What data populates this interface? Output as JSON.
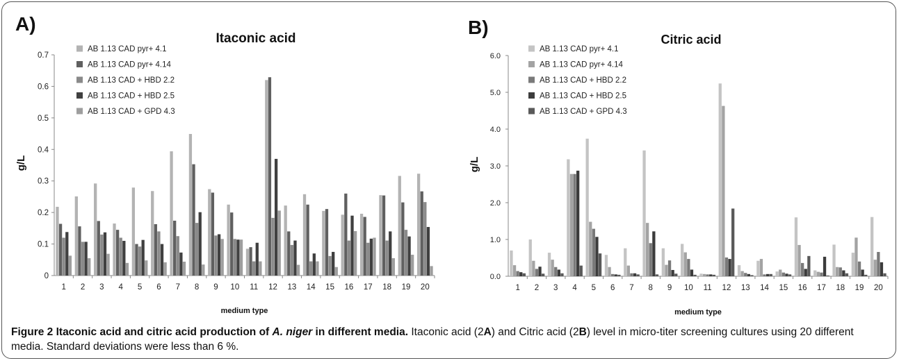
{
  "chart_data": [
    {
      "type": "bar",
      "panel_label": "A)",
      "title": "Itaconic acid",
      "xlabel": "medium type",
      "ylabel": "g/L",
      "ylim": [
        0,
        0.7
      ],
      "y_ticks": [
        "0",
        "0.1",
        "0.2",
        "0.3",
        "0.4",
        "0.5",
        "0.6",
        "0.7"
      ],
      "categories": [
        "1",
        "2",
        "3",
        "4",
        "5",
        "6",
        "7",
        "8",
        "9",
        "10",
        "11",
        "12",
        "13",
        "14",
        "15",
        "16",
        "17",
        "18",
        "19",
        "20"
      ],
      "legend_position": "top-left",
      "series": [
        {
          "name": "AB 1.13 CAD pyr+ 4.1",
          "color": "#b3b3b3",
          "values": [
            0.218,
            0.251,
            0.292,
            0.165,
            0.279,
            0.268,
            0.394,
            0.449,
            0.274,
            0.225,
            0.085,
            0.62,
            0.222,
            0.258,
            0.205,
            0.193,
            0.196,
            0.255,
            0.316,
            0.323
          ]
        },
        {
          "name": "AB 1.13 CAD pyr+ 4.14",
          "color": "#606060",
          "values": [
            0.164,
            0.156,
            0.173,
            0.145,
            0.1,
            0.163,
            0.174,
            0.353,
            0.263,
            0.2,
            0.09,
            0.629,
            0.14,
            0.225,
            0.211,
            0.26,
            0.186,
            0.254,
            0.232,
            0.267
          ]
        },
        {
          "name": "AB 1.13 CAD + HBD 2.2",
          "color": "#8a8a8a",
          "values": [
            0.12,
            0.107,
            0.13,
            0.12,
            0.092,
            0.14,
            0.125,
            0.167,
            0.127,
            0.116,
            0.045,
            0.183,
            0.097,
            0.045,
            0.062,
            0.111,
            0.104,
            0.111,
            0.145,
            0.233
          ]
        },
        {
          "name": "AB 1.13 CAD + HBD 2.5",
          "color": "#404040",
          "values": [
            0.138,
            0.107,
            0.137,
            0.11,
            0.113,
            0.1,
            0.073,
            0.201,
            0.131,
            0.114,
            0.104,
            0.37,
            0.111,
            0.07,
            0.075,
            0.19,
            0.117,
            0.14,
            0.124,
            0.154
          ]
        },
        {
          "name": "AB 1.13 CAD + GPD 4.3",
          "color": "#9e9e9e",
          "values": [
            0.063,
            0.055,
            0.069,
            0.04,
            0.048,
            0.042,
            0.044,
            0.035,
            0.116,
            0.114,
            0.045,
            0.206,
            0.034,
            0.045,
            0.027,
            0.141,
            0.12,
            0.055,
            0.066,
            0.03
          ]
        }
      ]
    },
    {
      "type": "bar",
      "panel_label": "B)",
      "title": "Citric acid",
      "xlabel": "medium type",
      "ylabel": "g/L",
      "ylim": [
        0,
        6.0
      ],
      "y_ticks": [
        "0.0",
        "1.0",
        "2.0",
        "3.0",
        "4.0",
        "5.0",
        "6.0"
      ],
      "categories": [
        "1",
        "2",
        "3",
        "4",
        "5",
        "6",
        "7",
        "8",
        "9",
        "10",
        "11",
        "12",
        "13",
        "14",
        "15",
        "16",
        "17",
        "18",
        "19",
        "20"
      ],
      "legend_position": "top-left",
      "series": [
        {
          "name": "AB 1.13 CAD pyr+ 4.1",
          "color": "#c4c4c4",
          "values": [
            0.7,
            1.0,
            0.64,
            3.18,
            3.74,
            0.58,
            0.76,
            3.42,
            0.76,
            0.88,
            0.07,
            5.24,
            0.3,
            0.42,
            0.13,
            1.6,
            0.16,
            0.86,
            0.64,
            1.61
          ]
        },
        {
          "name": "AB 1.13 CAD pyr+ 4.14",
          "color": "#a3a3a3",
          "values": [
            0.3,
            0.42,
            0.45,
            2.78,
            1.48,
            0.25,
            0.29,
            1.45,
            0.31,
            0.65,
            0.06,
            4.63,
            0.14,
            0.47,
            0.18,
            0.85,
            0.12,
            0.25,
            1.05,
            0.45
          ]
        },
        {
          "name": "AB 1.13 CAD + HBD 2.2",
          "color": "#7a7a7a",
          "values": [
            0.14,
            0.2,
            0.25,
            2.78,
            1.29,
            0.06,
            0.08,
            0.9,
            0.43,
            0.47,
            0.05,
            0.51,
            0.09,
            0.05,
            0.1,
            0.36,
            0.1,
            0.24,
            0.4,
            0.66
          ]
        },
        {
          "name": "AB 1.13 CAD + HBD 2.5",
          "color": "#3c3c3c",
          "values": [
            0.11,
            0.26,
            0.18,
            2.87,
            1.07,
            0.05,
            0.08,
            1.22,
            0.17,
            0.18,
            0.05,
            0.47,
            0.06,
            0.06,
            0.07,
            0.2,
            0.53,
            0.16,
            0.18,
            0.38
          ]
        },
        {
          "name": "AB 1.13 CAD + GPD 4.3",
          "color": "#5a5a5a",
          "values": [
            0.08,
            0.07,
            0.08,
            0.29,
            0.62,
            0.04,
            0.05,
            0.05,
            0.07,
            0.04,
            0.04,
            1.84,
            0.03,
            0.06,
            0.05,
            0.55,
            0.02,
            0.08,
            0.04,
            0.08
          ]
        }
      ]
    }
  ],
  "caption": {
    "title_prefix": "Figure 2 Itaconic acid and citric acid production of ",
    "species": "A. niger",
    "title_suffix": " in different media.",
    "text_1": " Itaconic acid (2",
    "ref_a": "A",
    "text_2": ") and Citric acid (2",
    "ref_b": "B",
    "text_3": ") level in micro-titer screening cultures using 20 different media. Standard deviations were less than 6 %."
  }
}
